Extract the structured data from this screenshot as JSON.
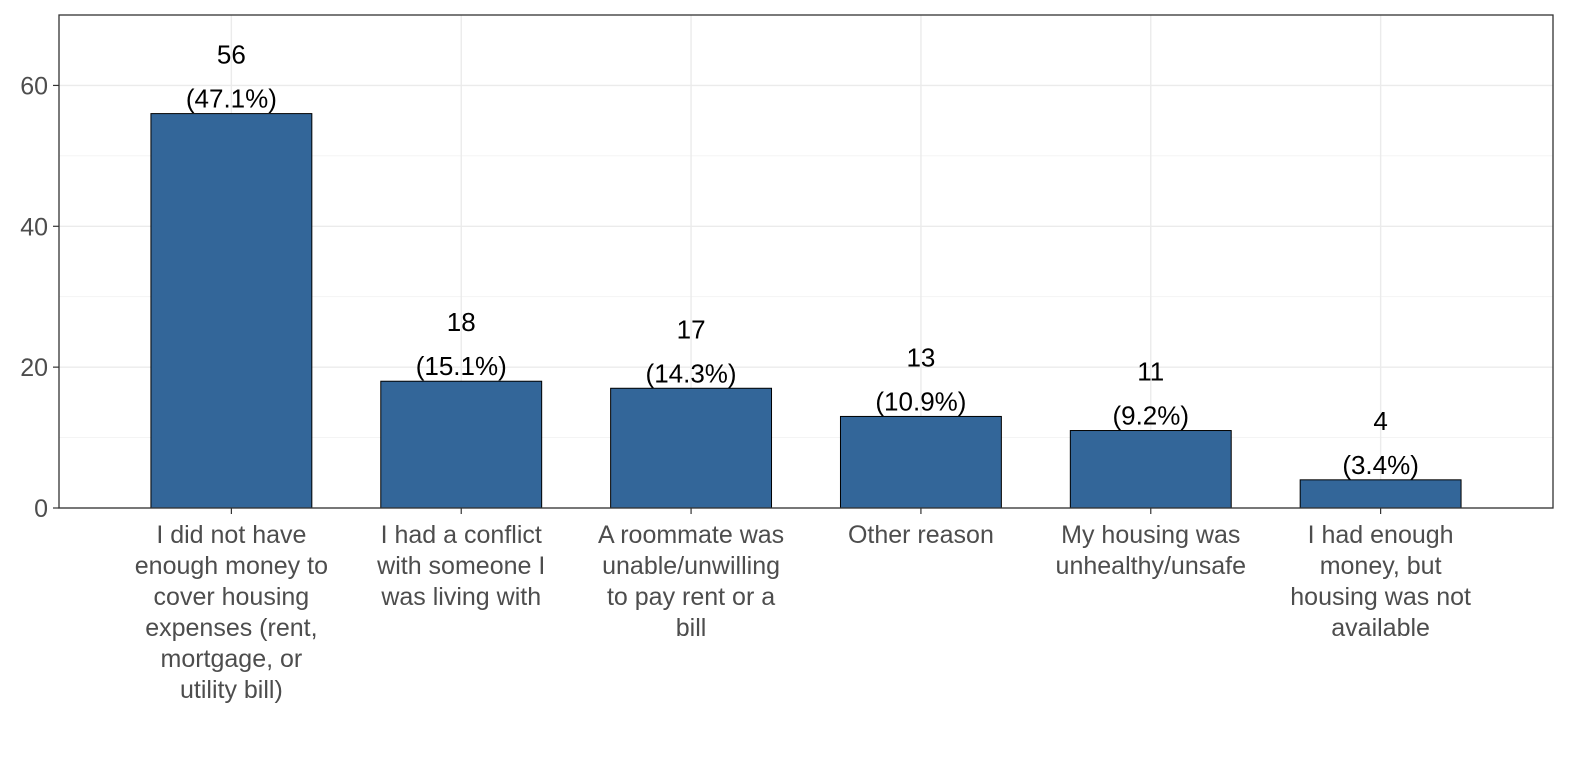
{
  "chart_data": {
    "type": "bar",
    "categories": [
      "I did not have enough money to cover housing expenses (rent, mortgage, or utility bill)",
      "I had a conflict with someone I was living with",
      "A roommate was unable/unwilling to pay rent or a bill",
      "Other reason",
      "My housing was unhealthy/unsafe",
      "I had enough money, but housing was not available"
    ],
    "category_lines": [
      [
        "I did not have",
        "enough money to",
        "cover housing",
        "expenses (rent,",
        "mortgage, or",
        "utility bill)"
      ],
      [
        "I had a conflict",
        "with someone I",
        "was living with"
      ],
      [
        "A roommate was",
        "unable/unwilling",
        "to pay rent or a",
        "bill"
      ],
      [
        "Other reason"
      ],
      [
        "My housing was",
        "unhealthy/unsafe"
      ],
      [
        "I had enough",
        "money, but",
        "housing was not",
        "available"
      ]
    ],
    "values": [
      56,
      18,
      17,
      13,
      11,
      4
    ],
    "percent_labels": [
      "(47.1%)",
      "(15.1%)",
      "(14.3%)",
      "(10.9%)",
      "(9.2%)",
      "(3.4%)"
    ],
    "title": "",
    "xlabel": "",
    "ylabel": "",
    "ylim": [
      0,
      70
    ],
    "yticks": [
      0,
      20,
      40,
      60
    ],
    "grid": true,
    "legend": "none",
    "bar_color": "#336699"
  }
}
